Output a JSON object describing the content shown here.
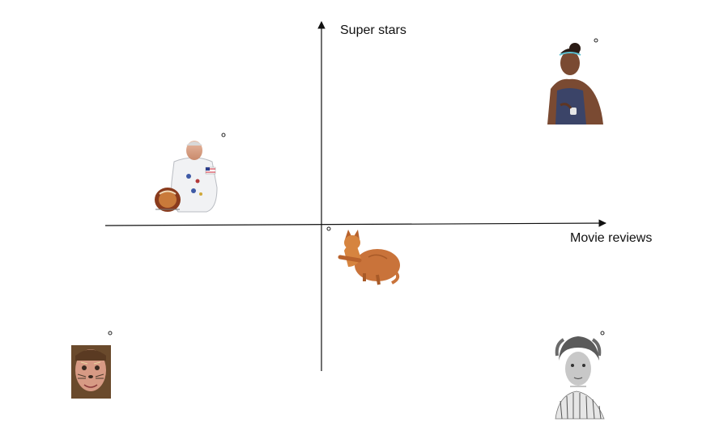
{
  "axes": {
    "x_label": "Movie reviews",
    "y_label": "Super stars"
  },
  "colors": {
    "axis": "#111111",
    "background": "#ffffff"
  },
  "pictures": [
    {
      "name": "astronaut-picture",
      "icon": "astronaut-photo"
    },
    {
      "name": "tennis-player-picture",
      "icon": "athlete-photo"
    },
    {
      "name": "cat-picture",
      "icon": "orange-cat-photo"
    },
    {
      "name": "face-paint-man-picture",
      "icon": "painted-face-photo"
    },
    {
      "name": "historic-woman-picture",
      "icon": "vintage-portrait-photo"
    }
  ]
}
